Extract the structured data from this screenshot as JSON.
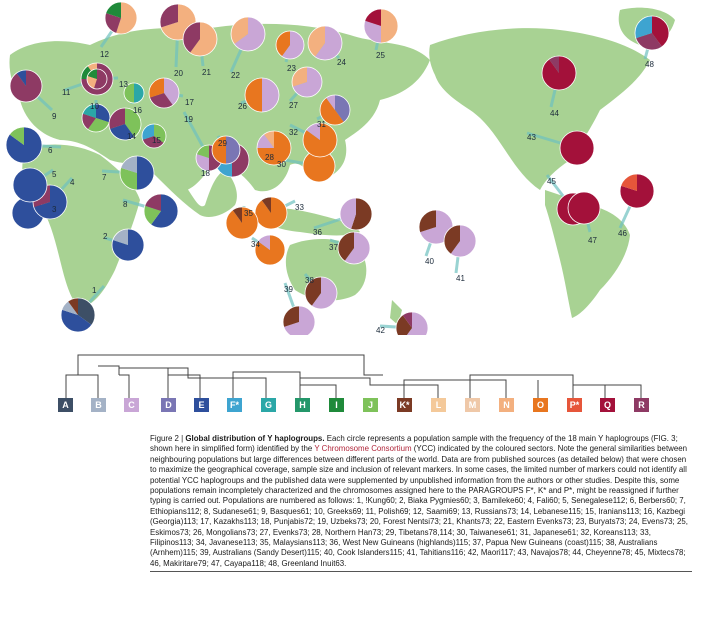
{
  "caption": {
    "figure_label": "Figure 2 |",
    "title": "Global distribution of Y haplogroups.",
    "text_part1": "Each circle represents a population sample with the frequency of the 18 main Y haplogroups (FIG. 3; shown here in simplified form) identified by the",
    "ycc_link": "Y Chromosome Consortium",
    "text_part2": "(YCC) indicated by the coloured sectors. Note the general similarities between neighbouring populations but large differences between different parts of the world. Data are from published sources (as detailed below) that were chosen to maximize the geographical coverage, sample size and inclusion of relevant markers. In some cases, the limited number of markers could not identify all potential YCC haplogroups and the published data were supplemented by unpublished information from the authors or other studies. Despite this, some populations remain incompletely characterized and the chromosomes assigned here to the PARAGROUPS F*, K* and P*, might be reassigned if further typing is carried out. Populations are numbered as follows: 1, !Kung60; 2, Biaka Pygmies60; 3, Bamileke60; 4, Fali60; 5, Senegalese112; 6, Berbers60; 7, Ethiopians112; 8, Sudanese61; 9, Basques61; 10, Greeks69; 11, Polish69; 12, Saami69; 13, Russians73; 14, Lebanese115; 15, Iranians113; 16, Kazbegi (Georgia)113; 17, Kazakhs113; 18, Punjabis72; 19, Uzbeks73; 20, Forest Nentsi73; 21, Khants73; 22, Eastern Evenks73; 23, Buryats73; 24, Evens73; 25, Eskimos73; 26, Mongolians73; 27, Evenks73; 28, Northern Han73; 29, Tibetans78,114; 30, Taiwanese61; 31, Japanese61; 32, Koreans113; 33, Filipinos113; 34, Javanese113; 35, Malaysians113; 36, West New Guineans (highlands)115; 37, Papua New Guineans (coast)115; 38, Australians (Arnhem)115; 39, Australians (Sandy Desert)115; 40, Cook Islanders115; 41, Tahitians116; 42, Maori117; 43, Navajos78; 44, Cheyenne78; 45, Mixtecs78; 46, Makiritare79; 47, Cayapa118; 48, Greenland Inuit63."
  },
  "haplogroups": [
    {
      "label": "A",
      "color": "#3d4f66"
    },
    {
      "label": "B",
      "color": "#a4b2c6"
    },
    {
      "label": "C",
      "color": "#c9a6d6"
    },
    {
      "label": "D",
      "color": "#7a76b4"
    },
    {
      "label": "E",
      "color": "#2e4f9c"
    },
    {
      "label": "F*",
      "color": "#3ea4d0"
    },
    {
      "label": "G",
      "color": "#2ba7a7"
    },
    {
      "label": "H",
      "color": "#24976a"
    },
    {
      "label": "I",
      "color": "#1f8a3a"
    },
    {
      "label": "J",
      "color": "#7ec25a"
    },
    {
      "label": "K*",
      "color": "#7b3a24"
    },
    {
      "label": "L",
      "color": "#f4c99a"
    },
    {
      "label": "M",
      "color": "#efc8a8"
    },
    {
      "label": "N",
      "color": "#f3b07f"
    },
    {
      "label": "O",
      "color": "#e8761f"
    },
    {
      "label": "P*",
      "color": "#e6563a"
    },
    {
      "label": "Q",
      "color": "#a3113a"
    },
    {
      "label": "R",
      "color": "#8e3a64"
    }
  ],
  "populations": [
    {
      "n": "1",
      "slices": [
        [
          "A",
          0.35
        ],
        [
          "E",
          0.45
        ],
        [
          "B",
          0.1
        ],
        [
          "K*",
          0.1
        ]
      ]
    },
    {
      "n": "2",
      "slices": [
        [
          "E",
          0.8
        ],
        [
          "B",
          0.2
        ]
      ]
    },
    {
      "n": "3",
      "slices": [
        [
          "E",
          1.0
        ]
      ]
    },
    {
      "n": "4",
      "slices": [
        [
          "E",
          0.7
        ],
        [
          "R",
          0.3
        ]
      ]
    },
    {
      "n": "5",
      "slices": [
        [
          "E",
          1.0
        ]
      ]
    },
    {
      "n": "6",
      "slices": [
        [
          "E",
          0.85
        ],
        [
          "J",
          0.15
        ]
      ]
    },
    {
      "n": "7",
      "slices": [
        [
          "E",
          0.5
        ],
        [
          "J",
          0.3
        ],
        [
          "B",
          0.2
        ]
      ]
    },
    {
      "n": "8",
      "slices": [
        [
          "E",
          0.6
        ],
        [
          "J",
          0.2
        ],
        [
          "R",
          0.2
        ]
      ]
    },
    {
      "n": "9",
      "slices": [
        [
          "R",
          0.9
        ],
        [
          "E",
          0.1
        ]
      ]
    },
    {
      "n": "10",
      "slices": [
        [
          "E",
          0.3
        ],
        [
          "J",
          0.3
        ],
        [
          "R",
          0.2
        ],
        [
          "G",
          0.2
        ]
      ]
    },
    {
      "n": "11",
      "slices": [
        [
          "R",
          0.75
        ],
        [
          "I",
          0.15
        ],
        [
          "N",
          0.1
        ]
      ]
    },
    {
      "n": "12",
      "slices": [
        [
          "N",
          0.55
        ],
        [
          "R",
          0.25
        ],
        [
          "I",
          0.2
        ]
      ]
    },
    {
      "n": "13",
      "slices": [
        [
          "R",
          0.55
        ],
        [
          "N",
          0.25
        ],
        [
          "I",
          0.2
        ]
      ]
    },
    {
      "n": "14",
      "slices": [
        [
          "J",
          0.4
        ],
        [
          "E",
          0.3
        ],
        [
          "R",
          0.3
        ]
      ]
    },
    {
      "n": "15",
      "slices": [
        [
          "J",
          0.35
        ],
        [
          "R",
          0.35
        ],
        [
          "F*",
          0.3
        ]
      ]
    },
    {
      "n": "16",
      "slices": [
        [
          "G",
          0.5
        ],
        [
          "J",
          0.5
        ]
      ]
    },
    {
      "n": "17",
      "slices": [
        [
          "C",
          0.4
        ],
        [
          "R",
          0.3
        ],
        [
          "O",
          0.3
        ]
      ]
    },
    {
      "n": "18",
      "slices": [
        [
          "R",
          0.5
        ],
        [
          "F*",
          0.3
        ],
        [
          "L",
          0.2
        ]
      ]
    },
    {
      "n": "19",
      "slices": [
        [
          "R",
          0.5
        ],
        [
          "C",
          0.3
        ],
        [
          "J",
          0.2
        ]
      ]
    },
    {
      "n": "20",
      "slices": [
        [
          "N",
          0.7
        ],
        [
          "R",
          0.3
        ]
      ]
    },
    {
      "n": "21",
      "slices": [
        [
          "N",
          0.6
        ],
        [
          "R",
          0.4
        ]
      ]
    },
    {
      "n": "22",
      "slices": [
        [
          "C",
          0.65
        ],
        [
          "N",
          0.35
        ]
      ]
    },
    {
      "n": "23",
      "slices": [
        [
          "C",
          0.6
        ],
        [
          "O",
          0.4
        ]
      ]
    },
    {
      "n": "24",
      "slices": [
        [
          "C",
          0.6
        ],
        [
          "N",
          0.4
        ]
      ]
    },
    {
      "n": "25",
      "slices": [
        [
          "N",
          0.5
        ],
        [
          "C",
          0.3
        ],
        [
          "Q",
          0.2
        ]
      ]
    },
    {
      "n": "26",
      "slices": [
        [
          "C",
          0.5
        ],
        [
          "O",
          0.5
        ]
      ]
    },
    {
      "n": "27",
      "slices": [
        [
          "C",
          0.7
        ],
        [
          "N",
          0.3
        ]
      ]
    },
    {
      "n": "28",
      "slices": [
        [
          "O",
          0.75
        ],
        [
          "C",
          0.15
        ],
        [
          "N",
          0.1
        ]
      ]
    },
    {
      "n": "29",
      "slices": [
        [
          "D",
          0.5
        ],
        [
          "O",
          0.5
        ]
      ]
    },
    {
      "n": "30",
      "slices": [
        [
          "O",
          1.0
        ]
      ]
    },
    {
      "n": "31",
      "slices": [
        [
          "D",
          0.4
        ],
        [
          "O",
          0.5
        ],
        [
          "C",
          0.1
        ]
      ]
    },
    {
      "n": "32",
      "slices": [
        [
          "O",
          0.85
        ],
        [
          "C",
          0.15
        ]
      ]
    },
    {
      "n": "33",
      "slices": [
        [
          "O",
          0.9
        ],
        [
          "K*",
          0.1
        ]
      ]
    },
    {
      "n": "34",
      "slices": [
        [
          "O",
          0.85
        ],
        [
          "C",
          0.15
        ]
      ]
    },
    {
      "n": "35",
      "slices": [
        [
          "O",
          0.9
        ],
        [
          "K*",
          0.1
        ]
      ]
    },
    {
      "n": "36",
      "slices": [
        [
          "K*",
          0.55
        ],
        [
          "C",
          0.45
        ]
      ]
    },
    {
      "n": "37",
      "slices": [
        [
          "C",
          0.6
        ],
        [
          "K*",
          0.4
        ]
      ]
    },
    {
      "n": "38",
      "slices": [
        [
          "C",
          0.6
        ],
        [
          "K*",
          0.4
        ]
      ]
    },
    {
      "n": "39",
      "slices": [
        [
          "C",
          0.7
        ],
        [
          "K*",
          0.3
        ]
      ]
    },
    {
      "n": "40",
      "slices": [
        [
          "C",
          0.7
        ],
        [
          "K*",
          0.3
        ]
      ]
    },
    {
      "n": "41",
      "slices": [
        [
          "C",
          0.6
        ],
        [
          "K*",
          0.4
        ]
      ]
    },
    {
      "n": "42",
      "slices": [
        [
          "C",
          0.6
        ],
        [
          "K*",
          0.3
        ],
        [
          "R",
          0.1
        ]
      ]
    },
    {
      "n": "43",
      "slices": [
        [
          "Q",
          1.0
        ]
      ]
    },
    {
      "n": "44",
      "slices": [
        [
          "Q",
          0.9
        ],
        [
          "R",
          0.1
        ]
      ]
    },
    {
      "n": "45",
      "slices": [
        [
          "Q",
          1.0
        ]
      ]
    },
    {
      "n": "46",
      "slices": [
        [
          "Q",
          0.8
        ],
        [
          "P*",
          0.2
        ]
      ]
    },
    {
      "n": "47",
      "slices": [
        [
          "Q",
          1.0
        ]
      ]
    },
    {
      "n": "48",
      "slices": [
        [
          "Q",
          0.4
        ],
        [
          "R",
          0.3
        ],
        [
          "F*",
          0.3
        ]
      ]
    }
  ]
}
